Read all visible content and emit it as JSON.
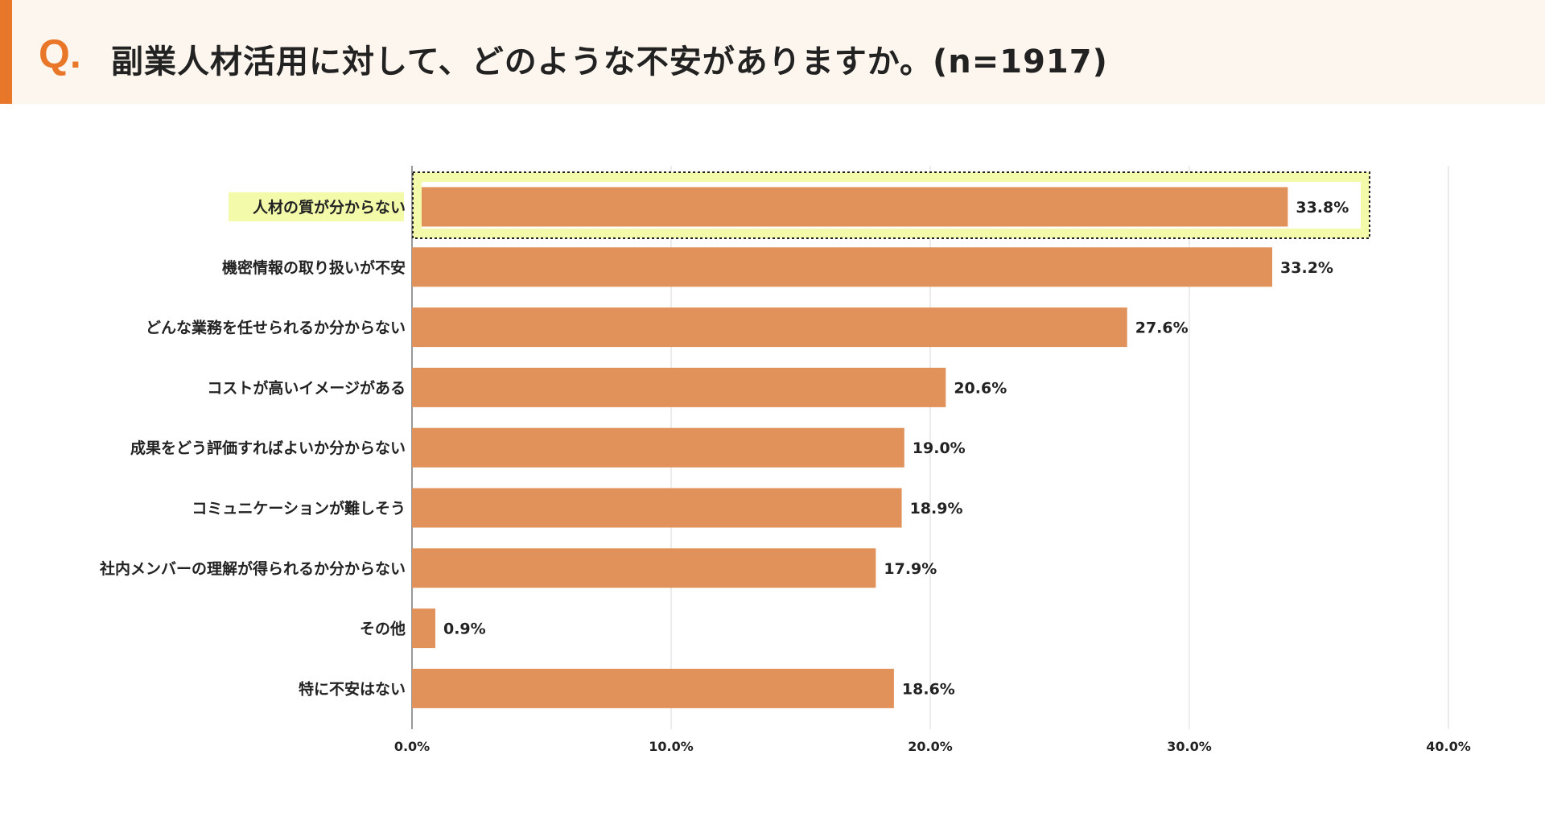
{
  "header": {
    "q": "Q.",
    "title": "副業人材活用に対して、どのような不安がありますか。(n=1917)"
  },
  "chart_data": {
    "type": "bar",
    "orientation": "horizontal",
    "title": "副業人材活用に対して、どのような不安がありますか。(n=1917)",
    "categories": [
      "人材の質が分からない",
      "機密情報の取り扱いが不安",
      "どんな業務を任せられるか分からない",
      "コストが高いイメージがある",
      "成果をどう評価すればよいか分からない",
      "コミュニケーションが難しそう",
      "社内メンバーの理解が得られるか分からない",
      "その他",
      "特に不安はない"
    ],
    "values": [
      33.8,
      33.2,
      27.6,
      20.6,
      19.0,
      18.9,
      17.9,
      0.9,
      18.6
    ],
    "value_labels": [
      "33.8%",
      "33.2%",
      "27.6%",
      "20.6%",
      "19.0%",
      "18.9%",
      "17.9%",
      "0.9%",
      "18.6%"
    ],
    "xlim": [
      0,
      40
    ],
    "ticks": [
      0,
      10,
      20,
      30,
      40
    ],
    "tick_labels": [
      "0.0%",
      "10.0%",
      "20.0%",
      "30.0%",
      "40.0%"
    ],
    "highlighted_category": "人材の質が分からない",
    "grid": true,
    "colors": {
      "bar": "#e0925a",
      "highlight": "#f3fbaa",
      "accent": "#e8772a"
    }
  }
}
